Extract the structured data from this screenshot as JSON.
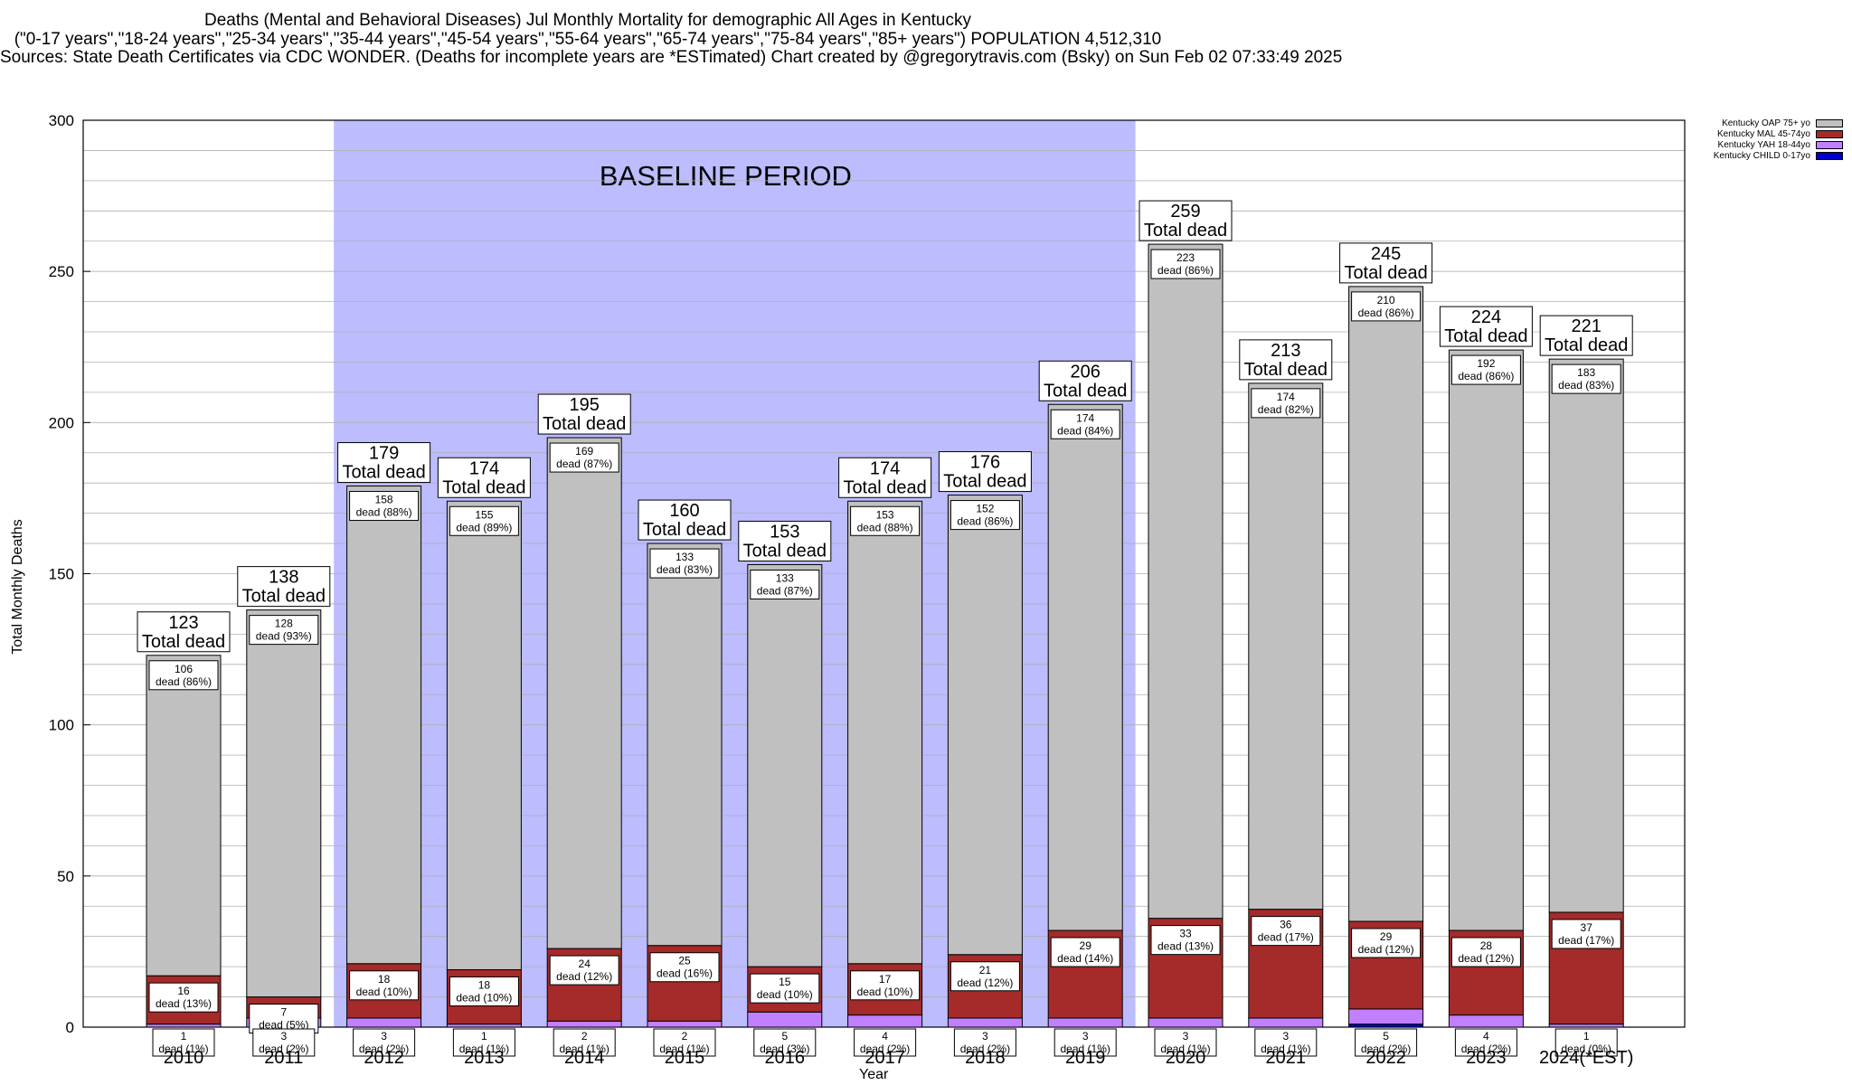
{
  "header": {
    "line1": "Deaths (Mental and Behavioral Diseases) Jul Monthly Mortality for demographic All Ages in Kentucky",
    "line2": "(\"0-17 years\",\"18-24 years\",\"25-34 years\",\"35-44 years\",\"45-54 years\",\"55-64 years\",\"65-74 years\",\"75-84 years\",\"85+ years\") POPULATION 4,512,310",
    "line3": "Sources: State Death Certificates via CDC WONDER. (Deaths for incomplete years are *ESTimated)                 Chart created by @gregorytravis.com (Bsky) on Sun Feb 02 07:33:49 2025"
  },
  "legend": [
    {
      "label": "Kentucky OAP 75+ yo",
      "color": "#c0c0c0"
    },
    {
      "label": "Kentucky MAL 45-74yo",
      "color": "#a52a2a"
    },
    {
      "label": "Kentucky YAH 18-44yo",
      "color": "#c080ff"
    },
    {
      "label": "Kentucky CHILD 0-17yo",
      "color": "#0000cc"
    }
  ],
  "chart_data": {
    "type": "bar",
    "stacked": true,
    "title": "Deaths (Mental and Behavioral Diseases) Jul Monthly Mortality for demographic All Ages in Kentucky",
    "xlabel": "Year",
    "ylabel": "Total Monthly Deaths",
    "ylim": [
      0,
      300
    ],
    "yticks": [
      0,
      50,
      100,
      150,
      200,
      250,
      300
    ],
    "grid": true,
    "legend_position": "top-right",
    "categories": [
      "2010",
      "2011",
      "2012",
      "2013",
      "2014",
      "2015",
      "2016",
      "2017",
      "2018",
      "2019",
      "2020",
      "2021",
      "2022",
      "2023",
      "2024(*EST)"
    ],
    "totals": [
      123,
      138,
      179,
      174,
      195,
      160,
      153,
      174,
      176,
      206,
      259,
      213,
      245,
      224,
      221
    ],
    "series": [
      {
        "name": "Kentucky CHILD 0-17yo",
        "color": "#0000cc",
        "values": [
          0,
          0,
          0,
          0,
          0,
          0,
          0,
          0,
          0,
          0,
          0,
          0,
          1,
          0,
          0
        ]
      },
      {
        "name": "Kentucky YAH 18-44yo",
        "color": "#c080ff",
        "values": [
          1,
          3,
          3,
          1,
          2,
          2,
          5,
          4,
          3,
          3,
          3,
          3,
          5,
          4,
          1
        ]
      },
      {
        "name": "Kentucky MAL 45-74yo",
        "color": "#a52a2a",
        "values": [
          16,
          7,
          18,
          18,
          24,
          25,
          15,
          17,
          21,
          29,
          33,
          36,
          29,
          28,
          37
        ]
      },
      {
        "name": "Kentucky OAP 75+ yo",
        "color": "#c0c0c0",
        "values": [
          106,
          128,
          158,
          155,
          169,
          133,
          133,
          153,
          152,
          174,
          223,
          174,
          210,
          192,
          183
        ]
      }
    ],
    "value_labels": {
      "oap_pct": [
        "dead (86%)",
        "dead (93%)",
        "dead (88%)",
        "dead (89%)",
        "dead (87%)",
        "dead (83%)",
        "dead (87%)",
        "dead (88%)",
        "dead (86%)",
        "dead (84%)",
        "dead (86%)",
        "dead (82%)",
        "dead (86%)",
        "dead (86%)",
        "dead (83%)"
      ],
      "mal_pct": [
        "dead (13%)",
        "dead (5%)",
        "dead (10%)",
        "dead (10%)",
        "dead (12%)",
        "dead (16%)",
        "dead (10%)",
        "dead (10%)",
        "dead (12%)",
        "dead (14%)",
        "dead (13%)",
        "dead (17%)",
        "dead (12%)",
        "dead (12%)",
        "dead (17%)"
      ],
      "yah_pct": [
        "dead (1%)",
        "dead (2%)",
        "dead (2%)",
        "dead (1%)",
        "dead (1%)",
        "dead (1%)",
        "dead (3%)",
        "dead (2%)",
        "dead (2%)",
        "dead (1%)",
        "dead (1%)",
        "dead (1%)",
        "dead (2%)",
        "dead (2%)",
        "dead (0%)"
      ]
    },
    "total_label_suffix": "Total dead",
    "annotation": {
      "text": "BASELINE PERIOD",
      "x_start": "2012",
      "x_end": "2019",
      "color": "#bcbcff"
    }
  }
}
